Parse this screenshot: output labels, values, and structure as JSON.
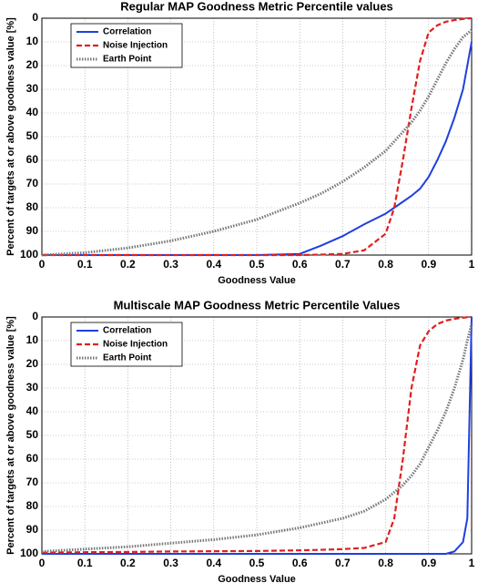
{
  "chart_data": [
    {
      "type": "line",
      "title": "Regular MAP Goodness Metric Percentile values",
      "xlabel": "Goodness Value",
      "ylabel": "Percent of targets at or above goodness value [%]",
      "x": [
        0,
        0.1,
        0.2,
        0.3,
        0.4,
        0.5,
        0.6,
        0.65,
        0.7,
        0.75,
        0.8,
        0.82,
        0.84,
        0.86,
        0.88,
        0.9,
        0.92,
        0.94,
        0.96,
        0.98,
        0.99,
        1.0
      ],
      "series": [
        {
          "name": "Correlation",
          "color": "#1f3fe0",
          "linestyle": "solid",
          "values": [
            100,
            100,
            100,
            100,
            100,
            100,
            99.5,
            96,
            92,
            87,
            82.5,
            80,
            77.5,
            75,
            72,
            67,
            60,
            52,
            42,
            30,
            20,
            10
          ]
        },
        {
          "name": "Noise Injection",
          "color": "#e02020",
          "linestyle": "dashed",
          "values": [
            100,
            100,
            100,
            100,
            100,
            100,
            100,
            99.8,
            99.5,
            98,
            91,
            80,
            60,
            38,
            18,
            6,
            3,
            1.5,
            0.8,
            0.3,
            0.1,
            0
          ]
        },
        {
          "name": "Earth Point",
          "color": "#777777",
          "linestyle": "dotted",
          "values": [
            100,
            99,
            97,
            94,
            90,
            85,
            78,
            74,
            69,
            63,
            56,
            52,
            48,
            44,
            39,
            33,
            26,
            19,
            13,
            8,
            6.5,
            5
          ]
        }
      ],
      "xlim": [
        0,
        1
      ],
      "xticks": [
        0,
        0.1,
        0.2,
        0.3,
        0.4,
        0.5,
        0.6,
        0.7,
        0.8,
        0.9,
        1
      ],
      "ylim": [
        0,
        100
      ],
      "yticks": [
        0,
        10,
        20,
        30,
        40,
        50,
        60,
        70,
        80,
        90,
        100
      ],
      "y_inverted": true,
      "grid": true,
      "legend": "upper left"
    },
    {
      "type": "line",
      "title": "Multiscale MAP Goodness Metric Percentile Values",
      "xlabel": "Goodness Value",
      "ylabel": "Percent of targets at or above goodness value [%]",
      "x": [
        0,
        0.1,
        0.2,
        0.3,
        0.4,
        0.5,
        0.6,
        0.65,
        0.7,
        0.75,
        0.8,
        0.82,
        0.84,
        0.86,
        0.88,
        0.9,
        0.92,
        0.94,
        0.96,
        0.98,
        0.99,
        1.0
      ],
      "series": [
        {
          "name": "Correlation",
          "color": "#1f3fe0",
          "linestyle": "solid",
          "values": [
            100,
            100,
            100,
            100,
            100,
            100,
            100,
            100,
            100,
            100,
            100,
            100,
            100,
            100,
            100,
            100,
            100,
            100,
            99,
            95,
            85,
            0
          ]
        },
        {
          "name": "Noise Injection",
          "color": "#e02020",
          "linestyle": "dashed",
          "values": [
            99.5,
            99.3,
            99.2,
            99,
            98.9,
            98.8,
            98.5,
            98.3,
            98,
            97.5,
            95,
            85,
            60,
            30,
            12,
            6,
            3,
            1.5,
            0.8,
            0.3,
            0.1,
            0
          ]
        },
        {
          "name": "Earth Point",
          "color": "#777777",
          "linestyle": "dotted",
          "values": [
            99,
            98,
            97,
            95.5,
            94,
            92,
            89,
            87,
            85,
            82,
            77,
            74,
            71,
            67,
            62,
            55,
            48,
            40,
            30,
            18,
            10,
            3
          ]
        }
      ],
      "xlim": [
        0,
        1
      ],
      "xticks": [
        0,
        0.1,
        0.2,
        0.3,
        0.4,
        0.5,
        0.6,
        0.7,
        0.8,
        0.9,
        1
      ],
      "ylim": [
        0,
        100
      ],
      "yticks": [
        0,
        10,
        20,
        30,
        40,
        50,
        60,
        70,
        80,
        90,
        100
      ],
      "y_inverted": true,
      "grid": true,
      "legend": "upper left"
    }
  ]
}
